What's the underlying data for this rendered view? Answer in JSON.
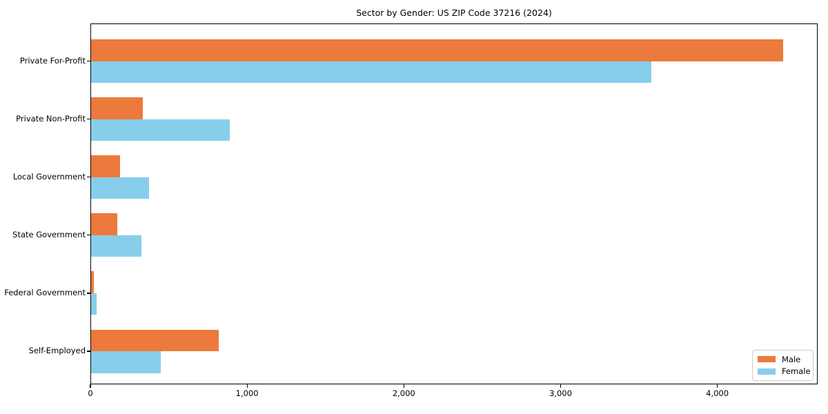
{
  "chart_data": {
    "type": "bar",
    "orientation": "horizontal",
    "title": "Sector by Gender: US ZIP Code 37216 (2024)",
    "xlabel": "",
    "ylabel": "",
    "categories": [
      "Private For-Profit",
      "Private Non-Profit",
      "Local Government",
      "State Government",
      "Federal Government",
      "Self-Employed"
    ],
    "series": [
      {
        "name": "Male",
        "color": "#ec7a3c",
        "values": [
          4420,
          335,
          190,
          170,
          20,
          820
        ]
      },
      {
        "name": "Female",
        "color": "#87ceeb",
        "values": [
          3580,
          890,
          375,
          325,
          40,
          450
        ]
      }
    ],
    "xlim": [
      0,
      4640
    ],
    "xticks": [
      {
        "value": 0,
        "label": "0"
      },
      {
        "value": 1000,
        "label": "1,000"
      },
      {
        "value": 2000,
        "label": "2,000"
      },
      {
        "value": 3000,
        "label": "3,000"
      },
      {
        "value": 4000,
        "label": "4,000"
      }
    ],
    "grid": false,
    "legend": {
      "position": "lower right",
      "entries": [
        "Male",
        "Female"
      ]
    }
  }
}
